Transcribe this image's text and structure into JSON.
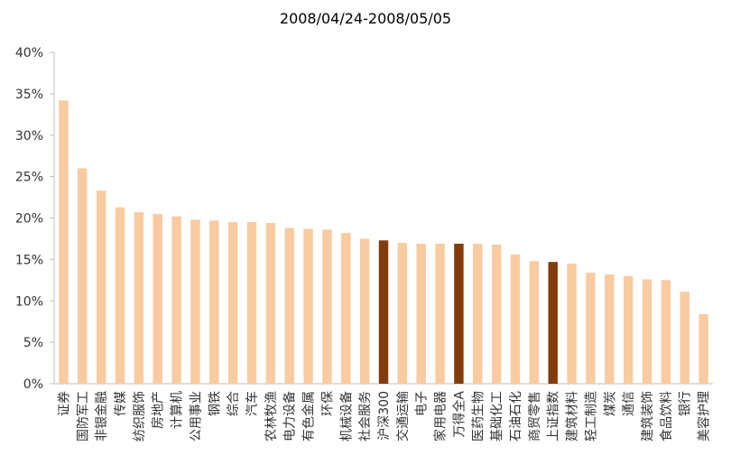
{
  "chart_data": {
    "type": "bar",
    "title": "2008/04/24-2008/05/05",
    "xlabel": "",
    "ylabel": "",
    "ylim": [
      0,
      40
    ],
    "yticks": [
      0,
      5,
      10,
      15,
      20,
      25,
      30,
      35,
      40
    ],
    "y_tick_format": "%",
    "grid": false,
    "legend": "none",
    "colors": {
      "default": "#f9cba0",
      "highlight": "#843c0c"
    },
    "categories": [
      "证券",
      "国防军工",
      "非银金融",
      "传媒",
      "纺织服饰",
      "房地产",
      "计算机",
      "公用事业",
      "钢铁",
      "综合",
      "汽车",
      "农林牧渔",
      "电力设备",
      "有色金属",
      "环保",
      "机械设备",
      "社会服务",
      "沪深300",
      "交通运输",
      "电子",
      "家用电器",
      "万得全A",
      "医药生物",
      "基础化工",
      "石油石化",
      "商贸零售",
      "上证指数",
      "建筑材料",
      "轻工制造",
      "煤炭",
      "通信",
      "建筑装饰",
      "食品饮料",
      "银行",
      "美容护理"
    ],
    "values": [
      34.2,
      26.0,
      23.3,
      21.3,
      20.7,
      20.5,
      20.2,
      19.8,
      19.7,
      19.5,
      19.5,
      19.4,
      18.8,
      18.7,
      18.6,
      18.2,
      17.5,
      17.3,
      17.0,
      16.9,
      16.9,
      16.9,
      16.9,
      16.8,
      15.6,
      14.8,
      14.7,
      14.5,
      13.4,
      13.2,
      13.0,
      12.6,
      12.5,
      11.1,
      8.4
    ],
    "highlighted": [
      "沪深300",
      "万得全A",
      "上证指数"
    ]
  }
}
